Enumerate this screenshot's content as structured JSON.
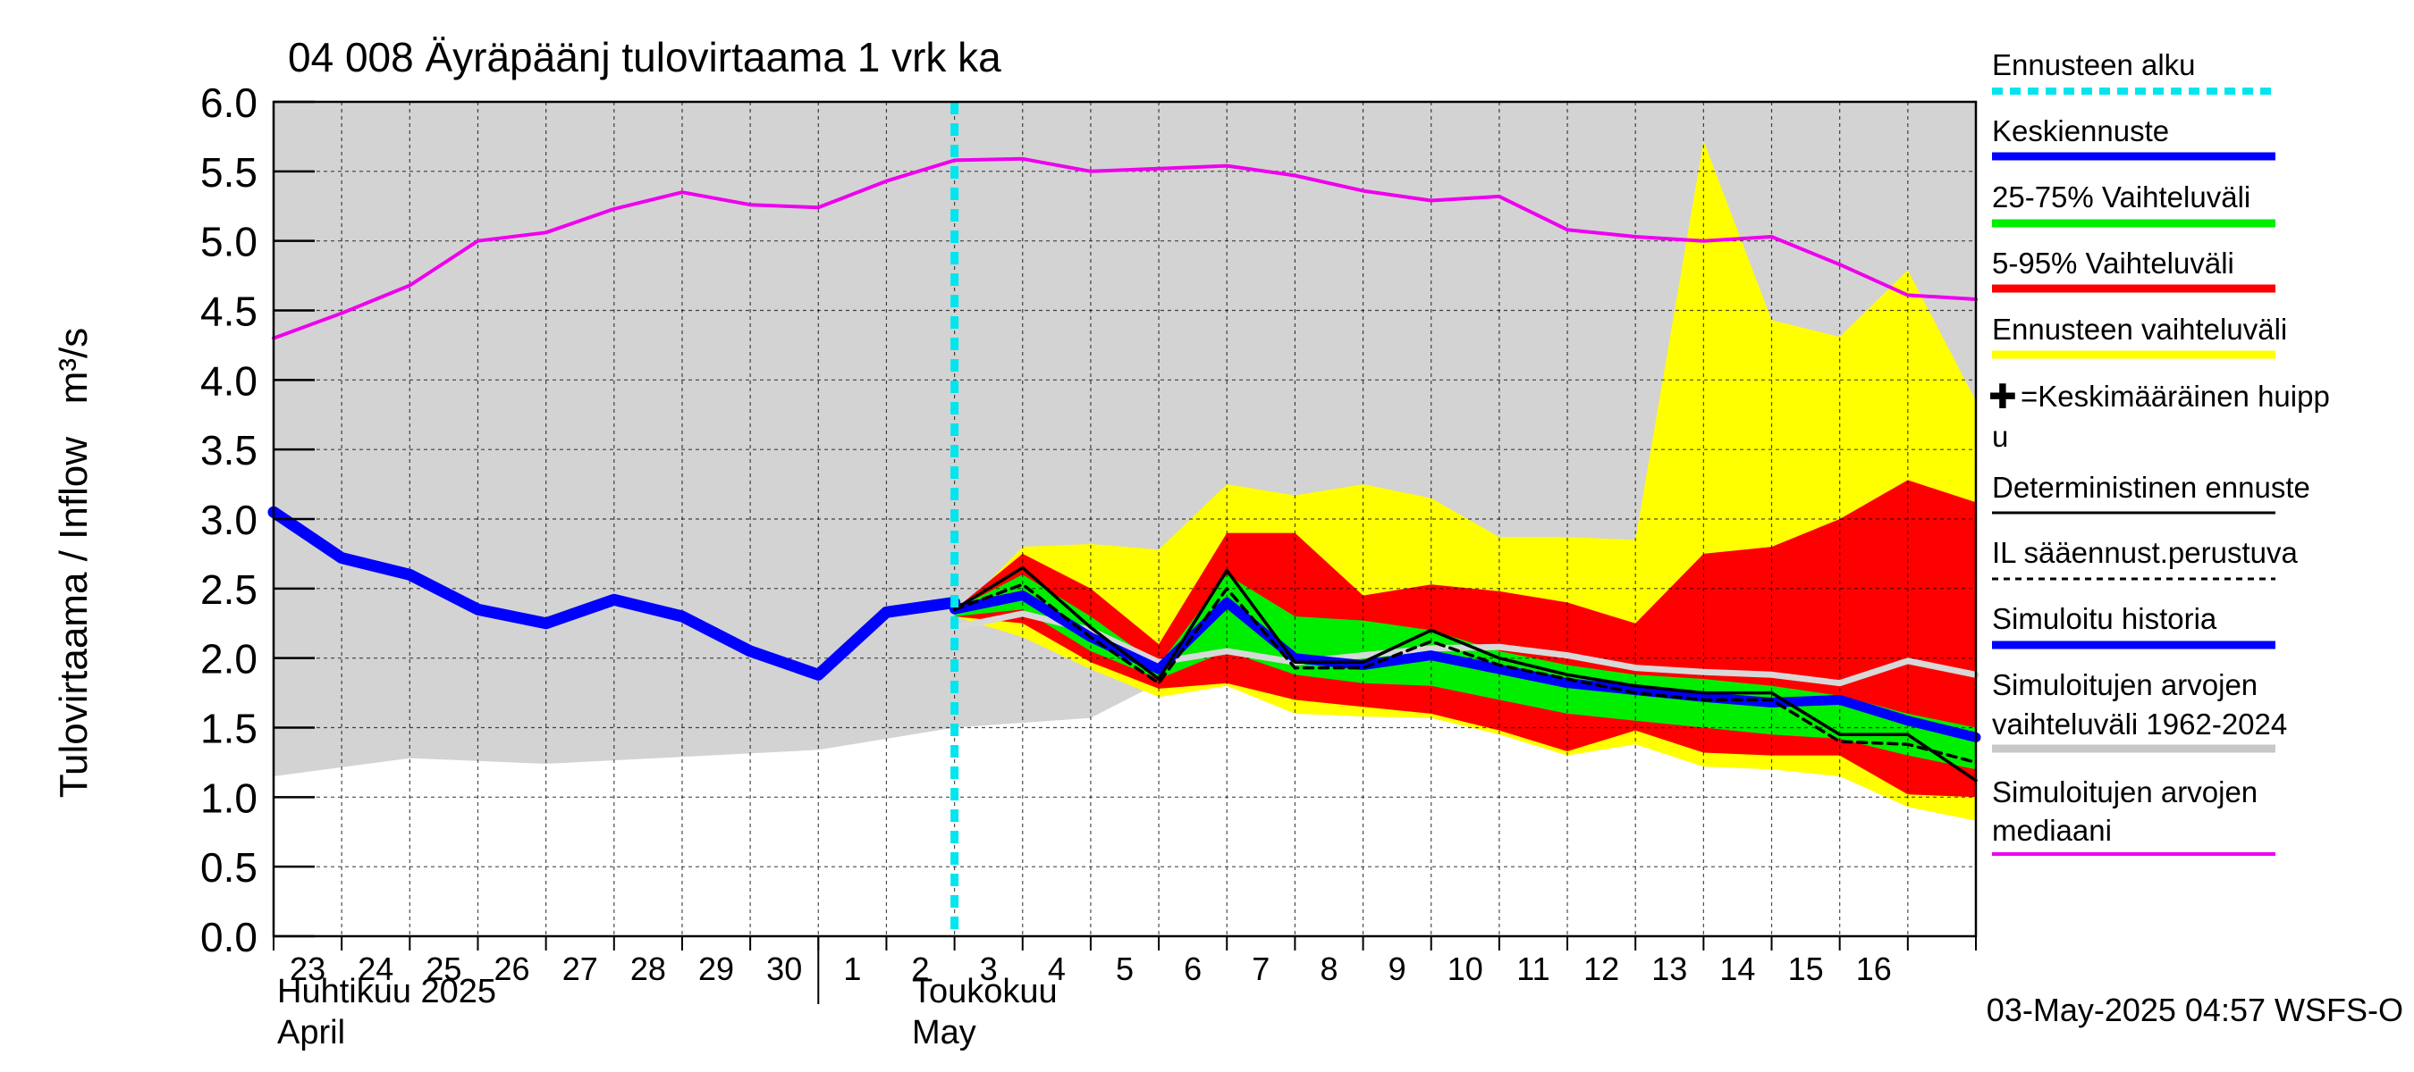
{
  "chart_data": {
    "type": "area",
    "title": "04 008 Äyräpäänj tulovirtaama 1 vrk ka",
    "ylabel": "Tulovirtaama / Inflow   m³/s",
    "ylim": [
      0,
      6
    ],
    "y_ticks": [
      "0.0",
      "0.5",
      "1.0",
      "1.5",
      "2.0",
      "2.5",
      "3.0",
      "3.5",
      "4.0",
      "4.5",
      "5.0",
      "5.5",
      "6.0"
    ],
    "x_day_labels": [
      "23",
      "24",
      "25",
      "26",
      "27",
      "28",
      "29",
      "30",
      "1",
      "2",
      "3",
      "4",
      "5",
      "6",
      "7",
      "8",
      "9",
      "10",
      "11",
      "12",
      "13",
      "14",
      "15",
      "16"
    ],
    "month_labels": [
      {
        "fi": "Huhtikuu  2025",
        "en": "April"
      },
      {
        "fi": "Toukokuu",
        "en": "May"
      }
    ],
    "forecast_start_day": 10,
    "timestamp": "03-May-2025 04:57 WSFS-O",
    "legend": [
      {
        "label": "Ennusteen alku",
        "style": "dotted",
        "color": "#00e5ee"
      },
      {
        "label": "Keskiennuste",
        "style": "thick",
        "color": "#0000ff"
      },
      {
        "label": "25-75% Vaihteluväli",
        "style": "thick",
        "color": "#00ee00"
      },
      {
        "label": "5-95% Vaihteluväli",
        "style": "thick",
        "color": "#ff0000"
      },
      {
        "label": "Ennusteen vaihteluväli",
        "style": "thick",
        "color": "#ffff00"
      },
      {
        "label": "✚=Keskimääräinen huipp u",
        "style": "none",
        "color": "#000000"
      },
      {
        "label": "Deterministinen ennuste",
        "style": "thin",
        "color": "#000000"
      },
      {
        "label": "IL sääennust.perustuva",
        "style": "dashed",
        "color": "#000000"
      },
      {
        "label": "Simuloitu historia",
        "style": "thick",
        "color": "#0000ff"
      },
      {
        "label": "Simuloitujen arvojen vaihteluväli 1962-2024",
        "style": "thick",
        "color": "#c8c8c8"
      },
      {
        "label": "Simuloitujen arvojen mediaani",
        "style": "medium",
        "color": "#ee00ee"
      }
    ],
    "series": {
      "hist_range_upper": {
        "x": [
          0,
          25
        ],
        "y": [
          6.0,
          6.0
        ]
      },
      "hist_range_lower": {
        "x": [
          0,
          2,
          4,
          8,
          10,
          12,
          14,
          16,
          18,
          20,
          22,
          24,
          25
        ],
        "y": [
          1.15,
          1.28,
          1.24,
          1.34,
          1.5,
          1.57,
          2.07,
          2.07,
          2.05,
          2.04,
          2.03,
          1.97,
          1.8
        ]
      },
      "yellow_upper": {
        "x": [
          10,
          11,
          12,
          13,
          14,
          15,
          16,
          17,
          18,
          19,
          20,
          21,
          22,
          23,
          24,
          25
        ],
        "y": [
          2.3,
          2.8,
          2.82,
          2.78,
          3.25,
          3.17,
          3.25,
          3.15,
          2.87,
          2.87,
          2.85,
          5.72,
          4.43,
          4.31,
          4.79,
          3.85
        ]
      },
      "yellow_lower": {
        "x": [
          10,
          11,
          12,
          13,
          14,
          15,
          16,
          17,
          18,
          19,
          20,
          21,
          22,
          23,
          24,
          25
        ],
        "y": [
          2.3,
          2.15,
          1.92,
          1.72,
          1.8,
          1.6,
          1.58,
          1.57,
          1.45,
          1.3,
          1.38,
          1.22,
          1.2,
          1.15,
          0.93,
          0.83
        ]
      },
      "red_upper": {
        "x": [
          10,
          11,
          12,
          13,
          14,
          15,
          16,
          17,
          18,
          19,
          20,
          21,
          22,
          23,
          24,
          25
        ],
        "y": [
          2.35,
          2.75,
          2.5,
          2.1,
          2.9,
          2.9,
          2.45,
          2.53,
          2.48,
          2.4,
          2.25,
          2.75,
          2.8,
          3.0,
          3.28,
          3.12
        ]
      },
      "red_lower": {
        "x": [
          10,
          11,
          12,
          13,
          14,
          15,
          16,
          17,
          18,
          19,
          20,
          21,
          22,
          23,
          24,
          25
        ],
        "y": [
          2.3,
          2.25,
          1.97,
          1.78,
          1.82,
          1.7,
          1.65,
          1.6,
          1.48,
          1.33,
          1.48,
          1.32,
          1.3,
          1.3,
          1.02,
          1.0
        ]
      },
      "green_upper": {
        "x": [
          10,
          11,
          12,
          13,
          14,
          15,
          16,
          17,
          18,
          19,
          20,
          21,
          22,
          23,
          24,
          25
        ],
        "y": [
          2.35,
          2.6,
          2.3,
          1.95,
          2.6,
          2.3,
          2.27,
          2.2,
          2.05,
          1.95,
          1.88,
          1.85,
          1.8,
          1.73,
          1.6,
          1.5
        ]
      },
      "green_lower": {
        "x": [
          10,
          11,
          12,
          13,
          14,
          15,
          16,
          17,
          18,
          19,
          20,
          21,
          22,
          23,
          24,
          25
        ],
        "y": [
          2.3,
          2.35,
          2.05,
          1.85,
          2.05,
          1.88,
          1.82,
          1.8,
          1.7,
          1.6,
          1.55,
          1.5,
          1.45,
          1.42,
          1.3,
          1.2
        ]
      },
      "sim_median": {
        "x": [
          0,
          1,
          2,
          3,
          4,
          5,
          6,
          7,
          8,
          9,
          10,
          11,
          12,
          13,
          14,
          15,
          16,
          17,
          18,
          19,
          20,
          21,
          22,
          23,
          24,
          25
        ],
        "y": [
          4.3,
          4.48,
          4.68,
          5.0,
          5.06,
          5.23,
          5.35,
          5.26,
          5.24,
          5.43,
          5.58,
          5.59,
          5.5,
          5.52,
          5.54,
          5.47,
          5.36,
          5.29,
          5.32,
          5.08,
          5.03,
          5.0,
          5.03,
          4.83,
          4.61,
          4.58
        ]
      },
      "grey_median": {
        "x": [
          10,
          11,
          12,
          13,
          14,
          15,
          16,
          17,
          18,
          19,
          20,
          21,
          22,
          23,
          24,
          25
        ],
        "y": [
          2.22,
          2.32,
          2.2,
          1.97,
          2.05,
          1.97,
          2.02,
          2.07,
          2.08,
          2.02,
          1.93,
          1.9,
          1.88,
          1.82,
          1.98,
          1.88
        ]
      },
      "deterministic": {
        "x": [
          10,
          11,
          12,
          13,
          14,
          15,
          16,
          17,
          18,
          19,
          20,
          21,
          22,
          23,
          24,
          25
        ],
        "y": [
          2.35,
          2.65,
          2.22,
          1.85,
          2.63,
          1.97,
          1.97,
          2.2,
          2.0,
          1.88,
          1.8,
          1.75,
          1.75,
          1.45,
          1.45,
          1.12
        ]
      },
      "il_forecast": {
        "x": [
          10,
          11,
          12,
          13,
          14,
          15,
          16,
          17,
          18,
          19,
          20,
          21,
          22,
          23,
          24,
          25
        ],
        "y": [
          2.35,
          2.53,
          2.15,
          1.82,
          2.5,
          1.93,
          1.93,
          2.12,
          1.95,
          1.85,
          1.75,
          1.7,
          1.7,
          1.4,
          1.38,
          1.25
        ]
      },
      "mean_forecast": {
        "x": [
          10,
          11,
          12,
          13,
          14,
          15,
          16,
          17,
          18,
          19,
          20,
          21,
          22,
          23,
          24,
          25
        ],
        "y": [
          2.35,
          2.45,
          2.15,
          1.92,
          2.4,
          2.0,
          1.95,
          2.02,
          1.92,
          1.82,
          1.77,
          1.72,
          1.68,
          1.7,
          1.55,
          1.43
        ]
      },
      "sim_history": {
        "x": [
          0,
          1,
          2,
          3,
          4,
          5,
          6,
          7,
          8,
          9,
          10
        ],
        "y": [
          3.05,
          2.72,
          2.6,
          2.35,
          2.25,
          2.42,
          2.3,
          2.05,
          1.88,
          2.33,
          2.4
        ]
      }
    }
  }
}
